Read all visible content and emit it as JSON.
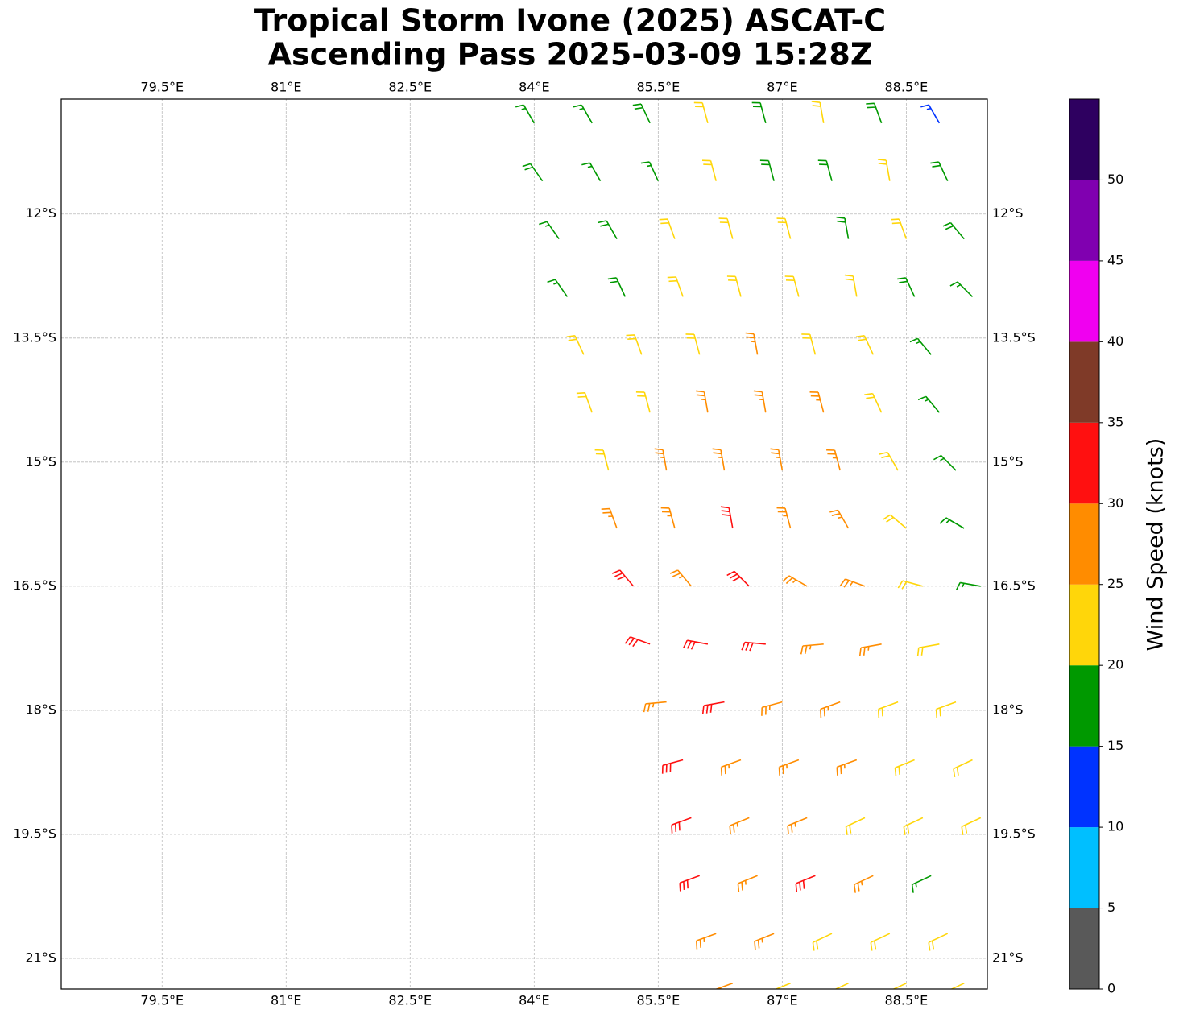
{
  "chart_data": {
    "type": "barbs",
    "title": "Tropical Storm Ivone (2025) ASCAT-C",
    "subtitle": "Ascending Pass 2025-03-09 15:28Z",
    "xlim": [
      78.28,
      89.48
    ],
    "ylim": [
      -21.37,
      -10.61
    ],
    "xticks": [
      {
        "value": 79.5,
        "label": "79.5°E"
      },
      {
        "value": 81,
        "label": "81°E"
      },
      {
        "value": 82.5,
        "label": "82.5°E"
      },
      {
        "value": 84,
        "label": "84°E"
      },
      {
        "value": 85.5,
        "label": "85.5°E"
      },
      {
        "value": 87,
        "label": "87°E"
      },
      {
        "value": 88.5,
        "label": "88.5°E"
      }
    ],
    "yticks": [
      {
        "value": -12,
        "label": "12°S"
      },
      {
        "value": -13.5,
        "label": "13.5°S"
      },
      {
        "value": -15,
        "label": "15°S"
      },
      {
        "value": -16.5,
        "label": "16.5°S"
      },
      {
        "value": -18,
        "label": "18°S"
      },
      {
        "value": -19.5,
        "label": "19.5°S"
      },
      {
        "value": -21,
        "label": "21°S"
      }
    ],
    "grid": true,
    "colorbar": {
      "label": "Wind Speed (knots)",
      "levels": [
        0,
        5,
        10,
        15,
        20,
        25,
        30,
        35,
        40,
        45,
        50,
        55
      ],
      "colors": [
        "#595959",
        "#00bfff",
        "#0033ff",
        "#009900",
        "#ffd60a",
        "#ff8c00",
        "#ff1010",
        "#7f3a28",
        "#f000f0",
        "#8000b0",
        "#2e0060"
      ],
      "ticks": [
        0,
        5,
        10,
        15,
        20,
        25,
        30,
        35,
        40,
        45,
        50
      ]
    },
    "barbs": [
      {
        "lat": -10.9,
        "lon": [
          84.0,
          84.7,
          85.4,
          86.1,
          86.8,
          87.5,
          88.2,
          88.9
        ],
        "speed": [
          17,
          17,
          18,
          22,
          18,
          22,
          18,
          14
        ],
        "direction": [
          330,
          330,
          335,
          345,
          345,
          350,
          340,
          330
        ]
      },
      {
        "lat": -11.6,
        "lon": [
          84.1,
          84.8,
          85.5,
          86.2,
          86.9,
          87.6,
          88.3,
          89.0
        ],
        "speed": [
          18,
          17,
          17,
          22,
          18,
          18,
          22,
          18
        ],
        "direction": [
          325,
          330,
          335,
          345,
          345,
          345,
          350,
          335
        ]
      },
      {
        "lat": -12.3,
        "lon": [
          84.3,
          85.0,
          85.7,
          86.4,
          87.1,
          87.8,
          88.5,
          89.2
        ],
        "speed": [
          17,
          18,
          22,
          22,
          22,
          18,
          22,
          18
        ],
        "direction": [
          325,
          330,
          340,
          345,
          345,
          350,
          340,
          320
        ]
      },
      {
        "lat": -13.0,
        "lon": [
          84.4,
          85.1,
          85.8,
          86.5,
          87.2,
          87.9,
          88.6,
          89.3
        ],
        "speed": [
          17,
          18,
          22,
          22,
          22,
          22,
          18,
          17
        ],
        "direction": [
          325,
          335,
          340,
          345,
          345,
          350,
          335,
          315
        ]
      },
      {
        "lat": -13.7,
        "lon": [
          84.6,
          85.3,
          86.0,
          86.7,
          87.4,
          88.1,
          88.8
        ],
        "speed": [
          22,
          22,
          22,
          27,
          22,
          22,
          17
        ],
        "direction": [
          335,
          340,
          345,
          350,
          345,
          335,
          320
        ]
      },
      {
        "lat": -14.4,
        "lon": [
          84.7,
          85.4,
          86.1,
          86.8,
          87.5,
          88.2,
          88.9
        ],
        "speed": [
          22,
          22,
          27,
          27,
          27,
          22,
          17
        ],
        "direction": [
          340,
          345,
          350,
          350,
          345,
          335,
          320
        ]
      },
      {
        "lat": -15.1,
        "lon": [
          84.9,
          85.6,
          86.3,
          87.0,
          87.7,
          88.4,
          89.1
        ],
        "speed": [
          22,
          27,
          27,
          27,
          27,
          22,
          17
        ],
        "direction": [
          345,
          350,
          350,
          350,
          345,
          330,
          315
        ]
      },
      {
        "lat": -15.8,
        "lon": [
          85.0,
          85.7,
          86.4,
          87.1,
          87.8,
          88.5,
          89.2
        ],
        "speed": [
          27,
          27,
          32,
          27,
          27,
          22,
          17
        ],
        "direction": [
          340,
          345,
          350,
          345,
          330,
          310,
          300
        ]
      },
      {
        "lat": -16.5,
        "lon": [
          85.2,
          85.9,
          86.6,
          87.3,
          88.0,
          88.7,
          89.4
        ],
        "speed": [
          32,
          27,
          32,
          27,
          27,
          22,
          17
        ],
        "direction": [
          320,
          320,
          315,
          300,
          290,
          285,
          280
        ]
      },
      {
        "lat": -17.2,
        "lon": [
          85.4,
          86.1,
          86.8,
          87.5,
          88.2,
          88.9
        ],
        "speed": [
          32,
          32,
          32,
          27,
          27,
          22
        ],
        "direction": [
          290,
          280,
          275,
          265,
          260,
          260
        ]
      },
      {
        "lat": -17.9,
        "lon": [
          85.6,
          86.3,
          87.0,
          87.7,
          88.4,
          89.1
        ],
        "speed": [
          27,
          32,
          27,
          27,
          22,
          22
        ],
        "direction": [
          265,
          260,
          255,
          250,
          250,
          250
        ]
      },
      {
        "lat": -18.6,
        "lon": [
          85.8,
          86.5,
          87.2,
          87.9,
          88.6,
          89.3
        ],
        "speed": [
          32,
          27,
          27,
          27,
          22,
          22
        ],
        "direction": [
          255,
          250,
          250,
          250,
          248,
          245
        ]
      },
      {
        "lat": -19.3,
        "lon": [
          85.9,
          86.6,
          87.3,
          88.0,
          88.7,
          89.4
        ],
        "speed": [
          32,
          27,
          27,
          22,
          22,
          22
        ],
        "direction": [
          250,
          248,
          248,
          245,
          245,
          245
        ]
      },
      {
        "lat": -20.0,
        "lon": [
          86.0,
          86.7,
          87.4,
          88.1,
          88.8
        ],
        "speed": [
          32,
          27,
          32,
          27,
          17
        ],
        "direction": [
          250,
          248,
          248,
          245,
          245
        ]
      },
      {
        "lat": -20.7,
        "lon": [
          86.2,
          86.9,
          87.6,
          88.3,
          89.0
        ],
        "speed": [
          27,
          27,
          22,
          22,
          22
        ],
        "direction": [
          250,
          248,
          245,
          245,
          245
        ]
      },
      {
        "lat": -21.3,
        "lon": [
          86.4,
          87.1,
          87.8,
          88.5,
          89.2
        ],
        "speed": [
          27,
          22,
          22,
          22,
          22
        ],
        "direction": [
          250,
          248,
          245,
          245,
          245
        ]
      }
    ]
  }
}
